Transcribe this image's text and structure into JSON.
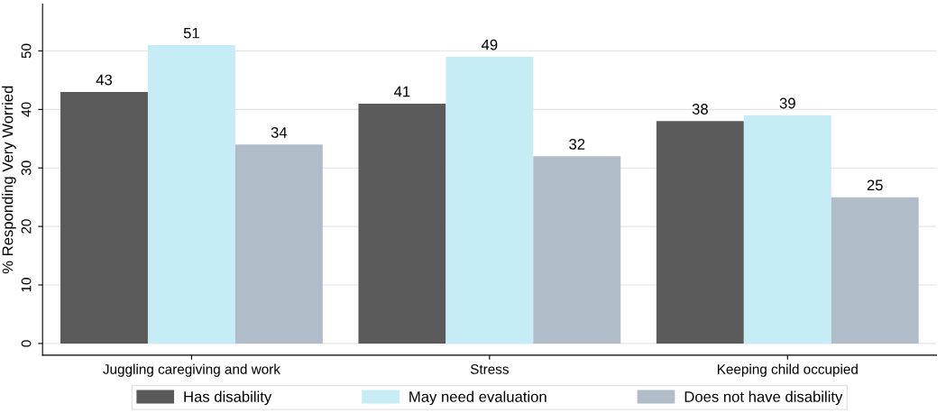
{
  "chart_data": {
    "type": "bar",
    "ylabel": "% Responding Very Worried",
    "categories": [
      "Juggling caregiving and work",
      "Stress",
      "Keeping child occupied"
    ],
    "series": [
      {
        "name": "Has disability",
        "color": "#5a5a5a",
        "values": [
          43,
          41,
          38
        ]
      },
      {
        "name": "May need evaluation",
        "color": "#c6ecf5",
        "values": [
          51,
          49,
          39
        ]
      },
      {
        "name": "Does not have disability",
        "color": "#b0bdc8",
        "values": [
          34,
          32,
          25
        ]
      }
    ],
    "ylim": [
      -2,
      58
    ],
    "yticks": [
      0,
      10,
      20,
      30,
      40,
      50
    ],
    "grid": "y",
    "legend": "bottom",
    "data_labels": true
  }
}
